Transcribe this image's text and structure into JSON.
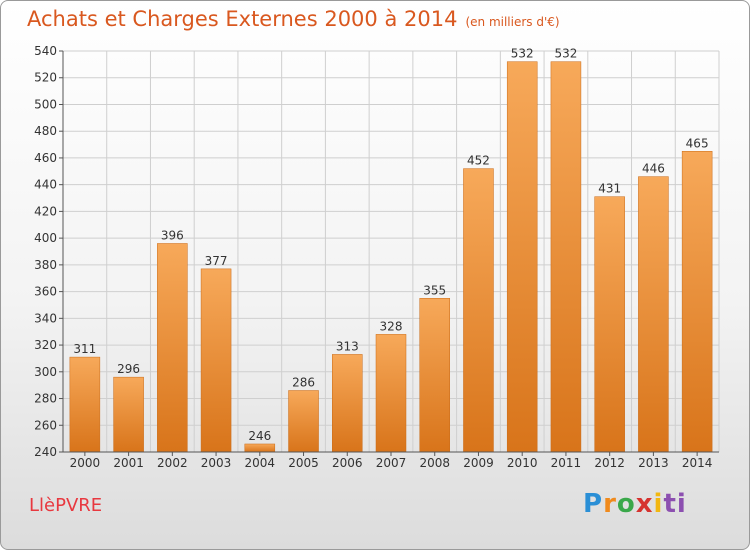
{
  "header": {
    "title": "Achats et Charges Externes 2000 à 2014",
    "unit": "(en milliers d'€)"
  },
  "footer": {
    "commune": "LlèPVRE",
    "logo_letters": [
      "P",
      "r",
      "o",
      "x",
      "i",
      "ti"
    ]
  },
  "chart_data": {
    "type": "bar",
    "title": "Achats et Charges Externes 2000 à 2014",
    "subtitle": "(en milliers d'€)",
    "xlabel": "",
    "ylabel": "",
    "categories": [
      "2000",
      "2001",
      "2002",
      "2003",
      "2004",
      "2005",
      "2006",
      "2007",
      "2008",
      "2009",
      "2010",
      "2011",
      "2012",
      "2013",
      "2014"
    ],
    "values": [
      311,
      296,
      396,
      377,
      246,
      286,
      313,
      328,
      355,
      452,
      532,
      532,
      431,
      446,
      465
    ],
    "ylim": [
      240,
      540
    ],
    "yticks": [
      240,
      260,
      280,
      300,
      320,
      340,
      360,
      380,
      400,
      420,
      440,
      460,
      480,
      500,
      520,
      540
    ],
    "grid": true,
    "legend": "none",
    "colors": {
      "bar_light": "#f7a95a",
      "bar_dark": "#d8741a",
      "grid": "#cfcfcf"
    }
  }
}
